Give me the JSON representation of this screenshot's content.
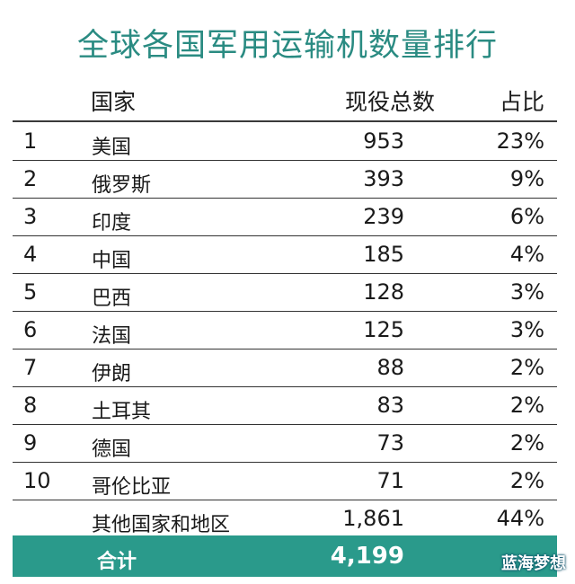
{
  "title": "全球各国军用运输机数量排行",
  "header": {
    "country": "国家",
    "total": "现役总数",
    "share": "占比"
  },
  "rows": [
    {
      "rank": "1",
      "country": "美国",
      "total": "953",
      "share": "23%"
    },
    {
      "rank": "2",
      "country": "俄罗斯",
      "total": "393",
      "share": "9%"
    },
    {
      "rank": "3",
      "country": "印度",
      "total": "239",
      "share": "6%"
    },
    {
      "rank": "4",
      "country": "中国",
      "total": "185",
      "share": "4%"
    },
    {
      "rank": "5",
      "country": "巴西",
      "total": "128",
      "share": "3%"
    },
    {
      "rank": "6",
      "country": "法国",
      "total": "125",
      "share": "3%"
    },
    {
      "rank": "7",
      "country": "伊朗",
      "total": "88",
      "share": "2%"
    },
    {
      "rank": "8",
      "country": "土耳其",
      "total": "83",
      "share": "2%"
    },
    {
      "rank": "9",
      "country": "德国",
      "total": "73",
      "share": "2%"
    },
    {
      "rank": "10",
      "country": "哥伦比亚",
      "total": "71",
      "share": "2%"
    }
  ],
  "other": {
    "country": "其他国家和地区",
    "total": "1,861",
    "share": "44%"
  },
  "sum": {
    "label": "合计",
    "total": "4,199"
  },
  "watermark": "蓝海梦想",
  "colors": {
    "title": "#2a8b82",
    "total_bar": "#2a9a8b"
  }
}
